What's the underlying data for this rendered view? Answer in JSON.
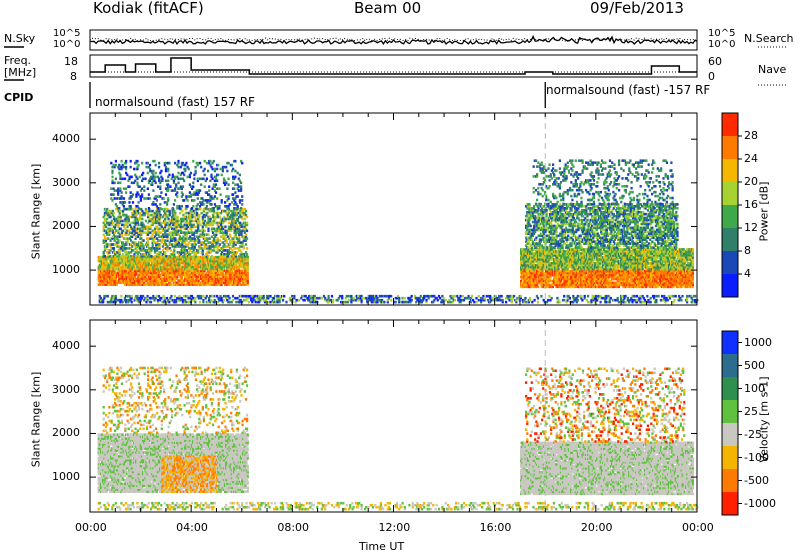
{
  "header": {
    "station": "Kodiak (fitACF)",
    "beam": "Beam 00",
    "date": "09/Feb/2013"
  },
  "side_labels": {
    "nsky": "N.Sky",
    "nsearch": "N.Search",
    "freq_line1": "Freq.",
    "freq_line2": "[MHz]",
    "nave": "Nave",
    "cpid": "CPID",
    "nsky_tick_top": "10^5",
    "nsky_tick_bottom": "10^0",
    "nsearch_tick_top": "10^5",
    "nsearch_tick_bottom": "10^0",
    "freq_tick_top": "18",
    "freq_tick_bottom": "8",
    "nave_tick_top": "60",
    "nave_tick_bottom": "0"
  },
  "cpid": {
    "segment1": "normalsound (fast) 157 RF",
    "segment2": "normalsound (fast) -157 RF",
    "segment2_start_hour": 18.0
  },
  "chart_data": [
    {
      "type": "heatmap",
      "name": "power",
      "xlabel": "",
      "ylabel": "Slant Range [km]",
      "xlim": [
        0,
        24
      ],
      "ylim": [
        200,
        4600
      ],
      "yticks": [
        1000,
        2000,
        3000,
        4000
      ],
      "colorbar": {
        "label": "Power [dB]",
        "range": [
          0,
          32
        ],
        "ticks": [
          4,
          8,
          12,
          16,
          20,
          24,
          28
        ],
        "colors": [
          "#0a1dff",
          "#1b48b8",
          "#2f7f6b",
          "#3fa84a",
          "#a8d232",
          "#f5b800",
          "#ff7a00",
          "#ff2a00"
        ]
      },
      "regions": [
        {
          "x": [
            0.3,
            6.2
          ],
          "y": [
            700,
            1500
          ],
          "level": "strong"
        },
        {
          "x": [
            0.5,
            6.2
          ],
          "y": [
            1500,
            3500
          ],
          "level": "patchy"
        },
        {
          "x": [
            17.0,
            23.8
          ],
          "y": [
            600,
            1600
          ],
          "level": "strong"
        },
        {
          "x": [
            17.3,
            23.2
          ],
          "y": [
            1500,
            3500
          ],
          "level": "patchy"
        },
        {
          "x": [
            0.3,
            24.0
          ],
          "y": [
            250,
            420
          ],
          "level": "ground"
        }
      ]
    },
    {
      "type": "heatmap",
      "name": "velocity",
      "xlabel": "Time UT",
      "ylabel": "Slant Range [km]",
      "xlim": [
        0,
        24
      ],
      "ylim": [
        200,
        4600
      ],
      "yticks": [
        1000,
        2000,
        3000,
        4000
      ],
      "xticks": [
        "00:00",
        "04:00",
        "08:00",
        "12:00",
        "16:00",
        "20:00",
        "00:00"
      ],
      "colorbar": {
        "label": "Velocity [m s-1]",
        "ticks": [
          "1000",
          "500",
          "100",
          "25",
          "-25",
          "-100",
          "-500",
          "-1000"
        ],
        "colors": [
          "#1030ff",
          "#2c6c8c",
          "#2f8f4f",
          "#60c040",
          "#c8c8c0",
          "#f5b400",
          "#ff7a00",
          "#ff2000"
        ]
      }
    }
  ]
}
